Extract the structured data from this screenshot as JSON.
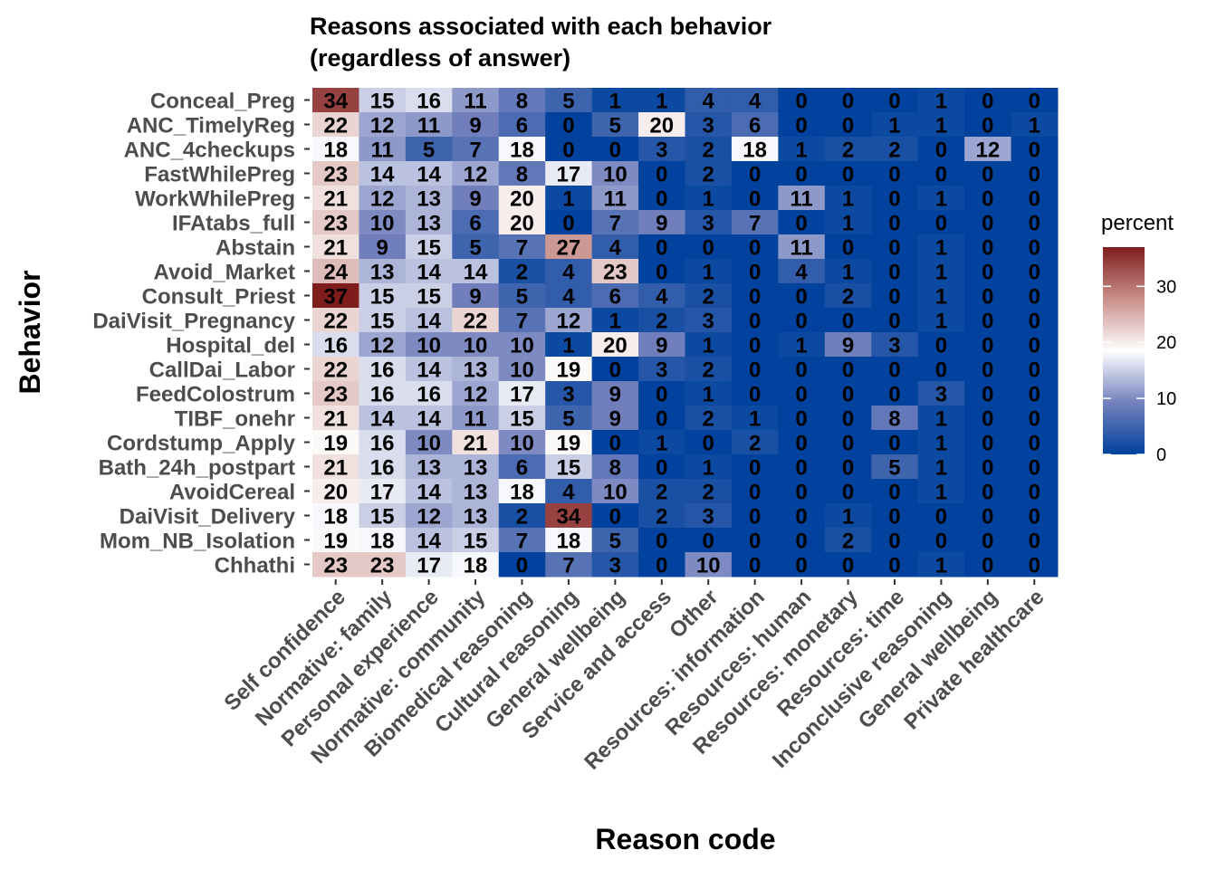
{
  "chart_data": {
    "type": "heatmap",
    "title": "Reasons associated with each behavior\n(regardless of answer)",
    "title_lines": [
      "Reasons associated with each behavior",
      "(regardless of answer)"
    ],
    "xlabel": "Reason code",
    "ylabel": "Behavior",
    "x_categories": [
      "Self confidence",
      "Normative: family",
      "Personal experience",
      "Normative: community",
      "Biomedical reasoning",
      "Cultural reasoning",
      "General wellbeing",
      "Service and access",
      "Other",
      "Resources: information",
      "Resources: human",
      "Resources: monetary",
      "Resources: time",
      "Inconclusive reasoning",
      "General wellbeing",
      "Private healthcare"
    ],
    "y_categories": [
      "Conceal_Preg",
      "ANC_TimelyReg",
      "ANC_4checkups",
      "FastWhilePreg",
      "WorkWhilePreg",
      "IFAtabs_full",
      "Abstain",
      "Avoid_Market",
      "Consult_Priest",
      "DaiVisit_Pregnancy",
      "Hospital_del",
      "CallDai_Labor",
      "FeedColostrum",
      "TIBF_onehr",
      "Cordstump_Apply",
      "Bath_24h_postpart",
      "AvoidCereal",
      "DaiVisit_Delivery",
      "Mom_NB_Isolation",
      "Chhathi"
    ],
    "values": [
      [
        34,
        15,
        16,
        11,
        8,
        5,
        1,
        1,
        4,
        4,
        0,
        0,
        0,
        1,
        0,
        0
      ],
      [
        22,
        12,
        11,
        9,
        6,
        0,
        5,
        20,
        3,
        6,
        0,
        0,
        1,
        1,
        0,
        1
      ],
      [
        18,
        11,
        5,
        7,
        18,
        0,
        0,
        3,
        2,
        18,
        1,
        2,
        2,
        0,
        12,
        0
      ],
      [
        23,
        14,
        14,
        12,
        8,
        17,
        10,
        0,
        2,
        0,
        0,
        0,
        0,
        0,
        0,
        0
      ],
      [
        21,
        12,
        13,
        9,
        20,
        1,
        11,
        0,
        1,
        0,
        11,
        1,
        0,
        1,
        0,
        0
      ],
      [
        23,
        10,
        13,
        6,
        20,
        0,
        7,
        9,
        3,
        7,
        0,
        1,
        0,
        0,
        0,
        0
      ],
      [
        21,
        9,
        15,
        5,
        7,
        27,
        4,
        0,
        0,
        0,
        11,
        0,
        0,
        1,
        0,
        0
      ],
      [
        24,
        13,
        14,
        14,
        2,
        4,
        23,
        0,
        1,
        0,
        4,
        1,
        0,
        1,
        0,
        0
      ],
      [
        37,
        15,
        15,
        9,
        5,
        4,
        6,
        4,
        2,
        0,
        0,
        2,
        0,
        1,
        0,
        0
      ],
      [
        22,
        15,
        14,
        22,
        7,
        12,
        1,
        2,
        3,
        0,
        0,
        0,
        0,
        1,
        0,
        0
      ],
      [
        16,
        12,
        10,
        10,
        10,
        1,
        20,
        9,
        1,
        0,
        1,
        9,
        3,
        0,
        0,
        0
      ],
      [
        22,
        16,
        14,
        13,
        10,
        19,
        0,
        3,
        2,
        0,
        0,
        0,
        0,
        0,
        0,
        0
      ],
      [
        23,
        16,
        16,
        12,
        17,
        3,
        9,
        0,
        1,
        0,
        0,
        0,
        0,
        3,
        0,
        0
      ],
      [
        21,
        14,
        14,
        11,
        15,
        5,
        9,
        0,
        2,
        1,
        0,
        0,
        8,
        1,
        0,
        0
      ],
      [
        19,
        16,
        10,
        21,
        10,
        19,
        0,
        1,
        0,
        2,
        0,
        0,
        0,
        1,
        0,
        0
      ],
      [
        21,
        16,
        13,
        13,
        6,
        15,
        8,
        0,
        1,
        0,
        0,
        0,
        5,
        1,
        0,
        0
      ],
      [
        20,
        17,
        14,
        13,
        18,
        4,
        10,
        2,
        2,
        0,
        0,
        0,
        0,
        1,
        0,
        0
      ],
      [
        18,
        15,
        12,
        13,
        2,
        34,
        0,
        2,
        3,
        0,
        0,
        1,
        0,
        0,
        0,
        0
      ],
      [
        19,
        18,
        14,
        15,
        7,
        18,
        5,
        0,
        0,
        0,
        0,
        2,
        0,
        0,
        0,
        0
      ],
      [
        23,
        23,
        17,
        18,
        0,
        7,
        3,
        0,
        10,
        0,
        0,
        0,
        0,
        1,
        0,
        0
      ]
    ],
    "color_scale": {
      "name": "percent",
      "low": "#00429d",
      "mid": "#ffffff",
      "high": "#7f1d1d",
      "low_value": 0,
      "mid_value": 18.5,
      "high_value": 37,
      "ticks": [
        0,
        10,
        20,
        30
      ]
    },
    "cell_labels": true,
    "grid": false,
    "legend_position": "right"
  }
}
